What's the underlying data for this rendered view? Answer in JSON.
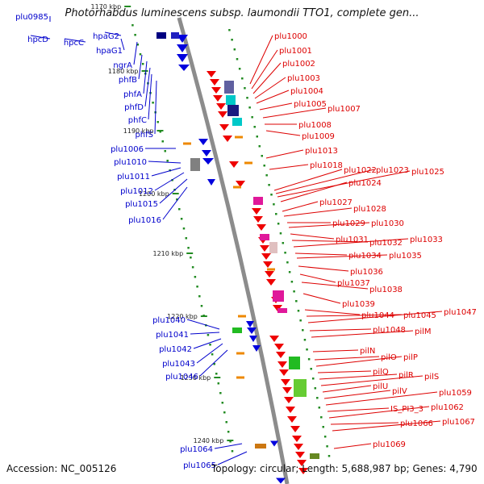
{
  "title": "Photorhabdus luminescens subsp. laumondii TTO1, complete gen...",
  "footer": {
    "accession": "Accession: NC_005126",
    "topology": "Topology: circular; Length: 5,688,987 bp; Genes: 4,790"
  },
  "colors": {
    "backbone": "#8c8c8c",
    "left_label": "#0000cc",
    "right_label": "#dd0000",
    "tick": "#228b22"
  },
  "kbp_ticks": [
    "1170 kbp",
    "1180 kbp",
    "1190 kbp",
    "1200 kbp",
    "1210 kbp",
    "1220 kbp",
    "1230 kbp",
    "1240 kbp"
  ],
  "left_genes": [
    "plu0985",
    "hpcD",
    "hpcC",
    "hpaG2",
    "hpaG1",
    "ngrA",
    "phfB",
    "phfA",
    "phfD",
    "phfC",
    "phfS",
    "plu1006",
    "plu1010",
    "plu1011",
    "plu1012",
    "plu1015",
    "plu1016",
    "plu1040",
    "plu1041",
    "plu1042",
    "plu1043",
    "plu1046",
    "plu1064",
    "plu1065"
  ],
  "right_genes": [
    "plu1000",
    "plu1001",
    "plu1002",
    "plu1003",
    "plu1004",
    "plu1005",
    "plu1007",
    "plu1008",
    "plu1009",
    "plu1013",
    "plu1018",
    "plu1022",
    "plu1023",
    "plu1025",
    "plu1024",
    "plu1027",
    "plu1028",
    "plu1029",
    "plu1030",
    "plu1031",
    "plu1032",
    "plu1033",
    "plu1034",
    "plu1035",
    "plu1036",
    "plu1037",
    "plu1038",
    "plu1039",
    "plu1044",
    "plu1045",
    "plu1047",
    "plu1048",
    "pilM",
    "pilN",
    "pilO",
    "pilP",
    "pilQ",
    "pilR",
    "pilS",
    "pilU",
    "pilV",
    "plu1059",
    "IS_PI3_3",
    "plu1062",
    "plu1066",
    "plu1067",
    "plu1069"
  ]
}
